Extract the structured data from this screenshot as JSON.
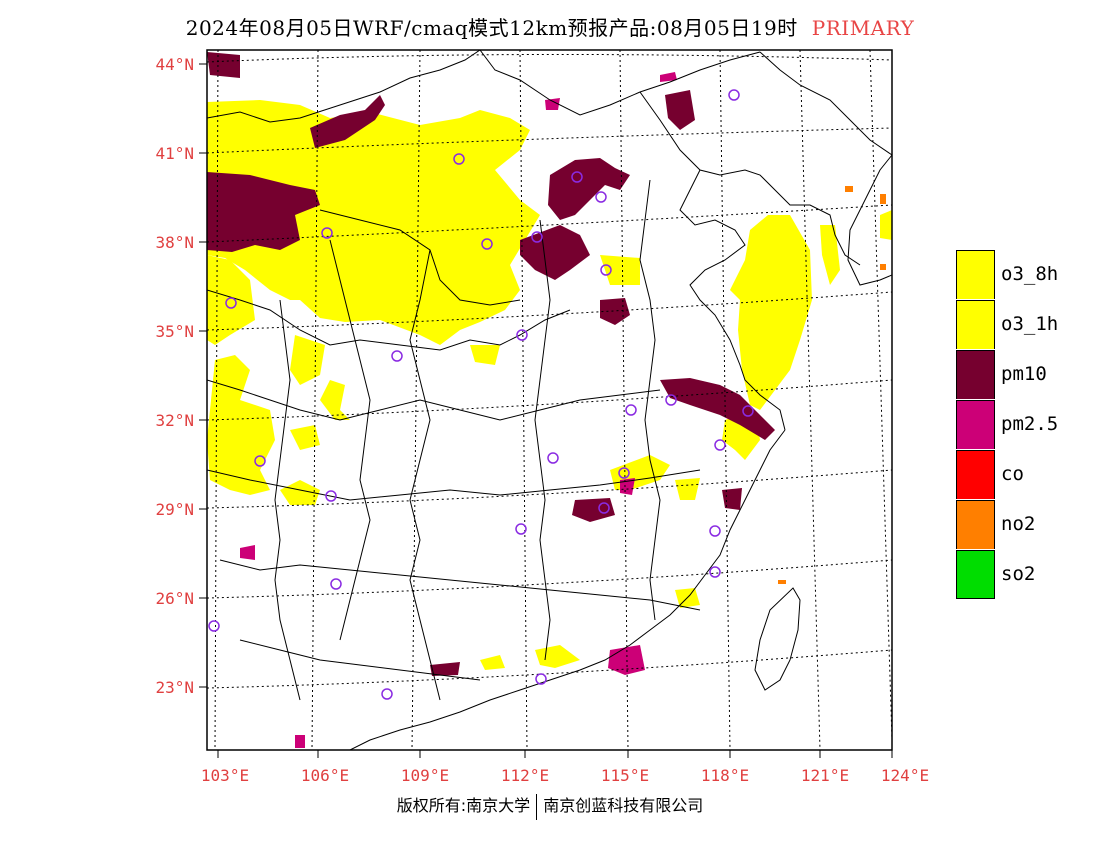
{
  "title": {
    "main": "2024年08月05日WRF/cmaq模式12km预报产品:08月05日19时",
    "tag": "PRIMARY"
  },
  "axes": {
    "latitudes": [
      "44°N",
      "41°N",
      "38°N",
      "35°N",
      "32°N",
      "29°N",
      "26°N",
      "23°N"
    ],
    "longitudes": [
      "103°E",
      "106°E",
      "109°E",
      "112°E",
      "115°E",
      "118°E",
      "121°E",
      "124°E"
    ]
  },
  "legend": [
    {
      "label": "o3_8h",
      "color": "#ffff00"
    },
    {
      "label": "o3_1h",
      "color": "#ffff00"
    },
    {
      "label": "pm10",
      "color": "#76002f"
    },
    {
      "label": "pm2.5",
      "color": "#cc0077"
    },
    {
      "label": "co",
      "color": "#ff0000"
    },
    {
      "label": "no2",
      "color": "#ff7f00"
    },
    {
      "label": "so2",
      "color": "#00dd00"
    }
  ],
  "footer": {
    "left": "版权所有:南京大学",
    "right": "南京创蓝科技有限公司"
  },
  "colors": {
    "axis_label": "#e04040",
    "o3": "#ffff00",
    "pm10": "#76002f",
    "pm25": "#cc0077",
    "no2": "#ff7f00",
    "station": "#8a2be2"
  }
}
